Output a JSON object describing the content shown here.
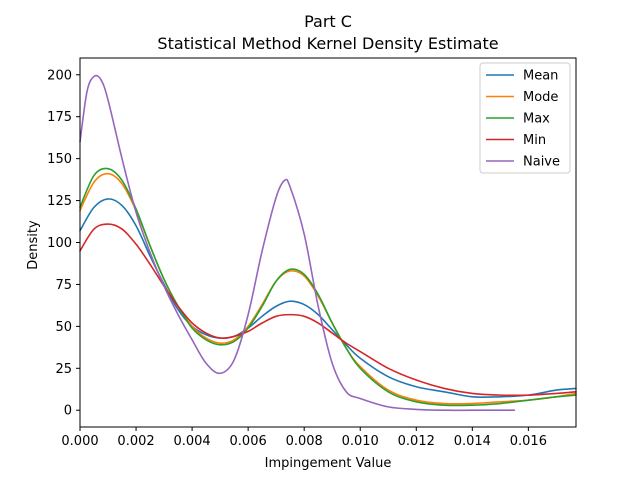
{
  "chart_data": {
    "type": "line",
    "title": "Part C",
    "subtitle": "Statistical Method Kernel Density Estimate",
    "xlabel": "Impingement Value",
    "ylabel": "Density",
    "xlim": [
      0.0,
      0.0177
    ],
    "ylim": [
      -10,
      210
    ],
    "xticks": [
      "0.000",
      "0.002",
      "0.004",
      "0.006",
      "0.008",
      "0.010",
      "0.012",
      "0.014",
      "0.016"
    ],
    "yticks": [
      "0",
      "25",
      "50",
      "75",
      "100",
      "125",
      "150",
      "175",
      "200"
    ],
    "legend_position": "top-right",
    "grid": false,
    "series": [
      {
        "name": "Mean",
        "color": "#1f77b4",
        "x": [
          0.0,
          0.0005,
          0.001,
          0.0015,
          0.002,
          0.0025,
          0.003,
          0.0035,
          0.004,
          0.0045,
          0.005,
          0.0055,
          0.006,
          0.0065,
          0.007,
          0.0075,
          0.008,
          0.0085,
          0.009,
          0.0095,
          0.01,
          0.011,
          0.012,
          0.013,
          0.014,
          0.015,
          0.016,
          0.017,
          0.0177
        ],
        "y": [
          107,
          121,
          126,
          122,
          110,
          92,
          75,
          60,
          50,
          45,
          43,
          44,
          49,
          56,
          62,
          65,
          63,
          57,
          48,
          39,
          31,
          20,
          14,
          11,
          8,
          8,
          9,
          12,
          13
        ]
      },
      {
        "name": "Mode",
        "color": "#ff7f0e",
        "x": [
          0.0,
          0.0005,
          0.001,
          0.0015,
          0.002,
          0.0025,
          0.003,
          0.0035,
          0.004,
          0.0045,
          0.005,
          0.0055,
          0.006,
          0.0065,
          0.007,
          0.0075,
          0.008,
          0.0085,
          0.009,
          0.0095,
          0.01,
          0.011,
          0.012,
          0.013,
          0.014,
          0.015,
          0.016,
          0.017,
          0.0177
        ],
        "y": [
          119,
          136,
          141,
          135,
          119,
          98,
          78,
          62,
          50,
          43,
          40,
          42,
          50,
          63,
          77,
          83,
          80,
          68,
          52,
          37,
          26,
          12,
          6,
          4,
          4,
          5,
          6,
          8,
          10
        ]
      },
      {
        "name": "Max",
        "color": "#2ca02c",
        "x": [
          0.0,
          0.0005,
          0.001,
          0.0015,
          0.002,
          0.0025,
          0.003,
          0.0035,
          0.004,
          0.0045,
          0.005,
          0.0055,
          0.006,
          0.0065,
          0.007,
          0.0075,
          0.008,
          0.0085,
          0.009,
          0.0095,
          0.01,
          0.011,
          0.012,
          0.013,
          0.014,
          0.015,
          0.016,
          0.017,
          0.0177
        ],
        "y": [
          121,
          140,
          144,
          137,
          120,
          98,
          78,
          62,
          49,
          42,
          39,
          41,
          49,
          62,
          77,
          84,
          81,
          69,
          52,
          37,
          25,
          11,
          5,
          3,
          3,
          4,
          6,
          8,
          9
        ]
      },
      {
        "name": "Min",
        "color": "#d62728",
        "x": [
          0.0,
          0.0005,
          0.001,
          0.0015,
          0.002,
          0.0025,
          0.003,
          0.0035,
          0.004,
          0.0045,
          0.005,
          0.0055,
          0.006,
          0.0065,
          0.007,
          0.0075,
          0.008,
          0.0085,
          0.009,
          0.0095,
          0.01,
          0.011,
          0.012,
          0.013,
          0.014,
          0.015,
          0.016,
          0.017,
          0.0177
        ],
        "y": [
          95,
          108,
          111,
          108,
          99,
          87,
          74,
          62,
          52,
          46,
          43,
          44,
          47,
          52,
          56,
          57,
          56,
          52,
          46,
          40,
          35,
          25,
          18,
          13,
          10,
          9,
          9,
          10,
          11
        ]
      },
      {
        "name": "Naive",
        "color": "#9467bd",
        "x": [
          0.0,
          0.00025,
          0.0005,
          0.00075,
          0.001,
          0.0015,
          0.002,
          0.0025,
          0.003,
          0.0035,
          0.004,
          0.0045,
          0.005,
          0.0055,
          0.006,
          0.0065,
          0.007,
          0.0073,
          0.0075,
          0.008,
          0.0085,
          0.009,
          0.0095,
          0.01,
          0.011,
          0.012,
          0.013,
          0.014,
          0.0155
        ],
        "y": [
          160,
          190,
          199,
          197,
          185,
          150,
          118,
          94,
          74,
          57,
          42,
          28,
          22,
          30,
          57,
          95,
          127,
          137,
          133,
          105,
          62,
          28,
          11,
          7,
          2,
          0.5,
          0,
          0,
          0
        ]
      }
    ]
  }
}
